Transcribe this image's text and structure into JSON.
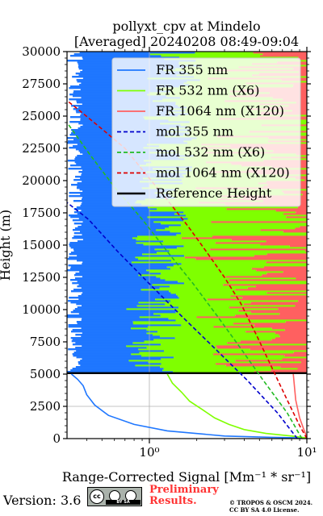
{
  "chart_data": {
    "type": "line",
    "title_line1": "pollyxt_cpv at Mindelo",
    "title_line2": "[Averaged] 20240208 08:49-09:04",
    "xlabel": "Range-Corrected Signal [Mm⁻¹ * sr⁻¹]",
    "ylabel": "Height (m)",
    "xscale": "log",
    "xlim": [
      0.3,
      10
    ],
    "ylim": [
      0,
      30000
    ],
    "xticks": [
      {
        "value": 1,
        "label": "10⁰"
      },
      {
        "value": 10,
        "label": "10¹"
      }
    ],
    "yticks": [
      0,
      2500,
      5000,
      7500,
      10000,
      12500,
      15000,
      17500,
      20000,
      22500,
      25000,
      27500,
      30000
    ],
    "ytick_labels": [
      "0",
      "2500",
      "5000",
      "7500",
      "10000",
      "12500",
      "15000",
      "17500",
      "20000",
      "22500",
      "25000",
      "27500",
      "30000"
    ],
    "grid": true,
    "legend_position": "top-right",
    "reference_height": [
      5000,
      5150
    ],
    "series": [
      {
        "name": "FR 355 nm",
        "color": "#1f77ff",
        "style": "solid",
        "x": [
          10,
          6,
          3,
          1.3,
          0.8,
          0.55,
          0.45,
          0.4,
          0.38,
          0.35,
          0.32
        ],
        "y": [
          50,
          100,
          200,
          600,
          1100,
          1800,
          2600,
          3400,
          4100,
          4600,
          5000
        ]
      },
      {
        "name": "FR 532 nm (X6)",
        "color": "#7fff00",
        "style": "solid",
        "x": [
          10,
          8,
          5.5,
          4,
          3.2,
          2.6,
          2.2,
          1.8,
          1.6,
          1.4,
          1.3
        ],
        "y": [
          50,
          200,
          400,
          700,
          1100,
          1600,
          2200,
          2900,
          3600,
          4300,
          5000
        ]
      },
      {
        "name": "FR 1064 nm (X120)",
        "color": "#ff6060",
        "style": "solid",
        "x": [
          10,
          9.5,
          9,
          8.5,
          8.2
        ],
        "y": [
          100,
          800,
          1600,
          3000,
          5000
        ]
      },
      {
        "name": "mol 355 nm",
        "color": "#0000cc",
        "style": "dashed",
        "x": [
          8.7,
          6.5,
          4.2,
          2.6,
          1.6,
          1.0,
          0.63,
          0.41,
          0.3
        ],
        "y": [
          0,
          2000,
          4500,
          7000,
          9500,
          12000,
          14500,
          17000,
          18300
        ]
      },
      {
        "name": "mol 532 nm (X6)",
        "color": "#22bb22",
        "style": "dashed",
        "x": [
          9.3,
          7.5,
          5.3,
          3.8,
          2.7,
          1.9,
          1.3,
          0.9,
          0.6,
          0.42,
          0.3
        ],
        "y": [
          0,
          2000,
          4500,
          7000,
          9500,
          12000,
          14500,
          17000,
          19500,
          22000,
          24500
        ]
      },
      {
        "name": "mol 1064 nm (X120)",
        "color": "#dd0000",
        "style": "dashed",
        "x": [
          10,
          9,
          7.5,
          6,
          4.8,
          3.8,
          3.0,
          2.3,
          1.75,
          1.3,
          0.95,
          0.7,
          0.5,
          0.38,
          0.3
        ],
        "y": [
          0,
          1000,
          3000,
          5500,
          8000,
          10500,
          12500,
          14500,
          16500,
          18500,
          20500,
          22500,
          24000,
          25200,
          26200
        ]
      },
      {
        "name": "Reference Height",
        "color": "#000000",
        "style": "solid",
        "x": [],
        "y": []
      }
    ]
  },
  "footer": {
    "version": "Version: 3.6",
    "cc_label": "cc",
    "cc_strip": "BY   SA",
    "preliminary_line1": "Preliminary",
    "preliminary_line2": "Results.",
    "copyright_line1": "© TROPOS & OSCM 2024.",
    "copyright_line2": "CC BY SA 4.0 License."
  }
}
